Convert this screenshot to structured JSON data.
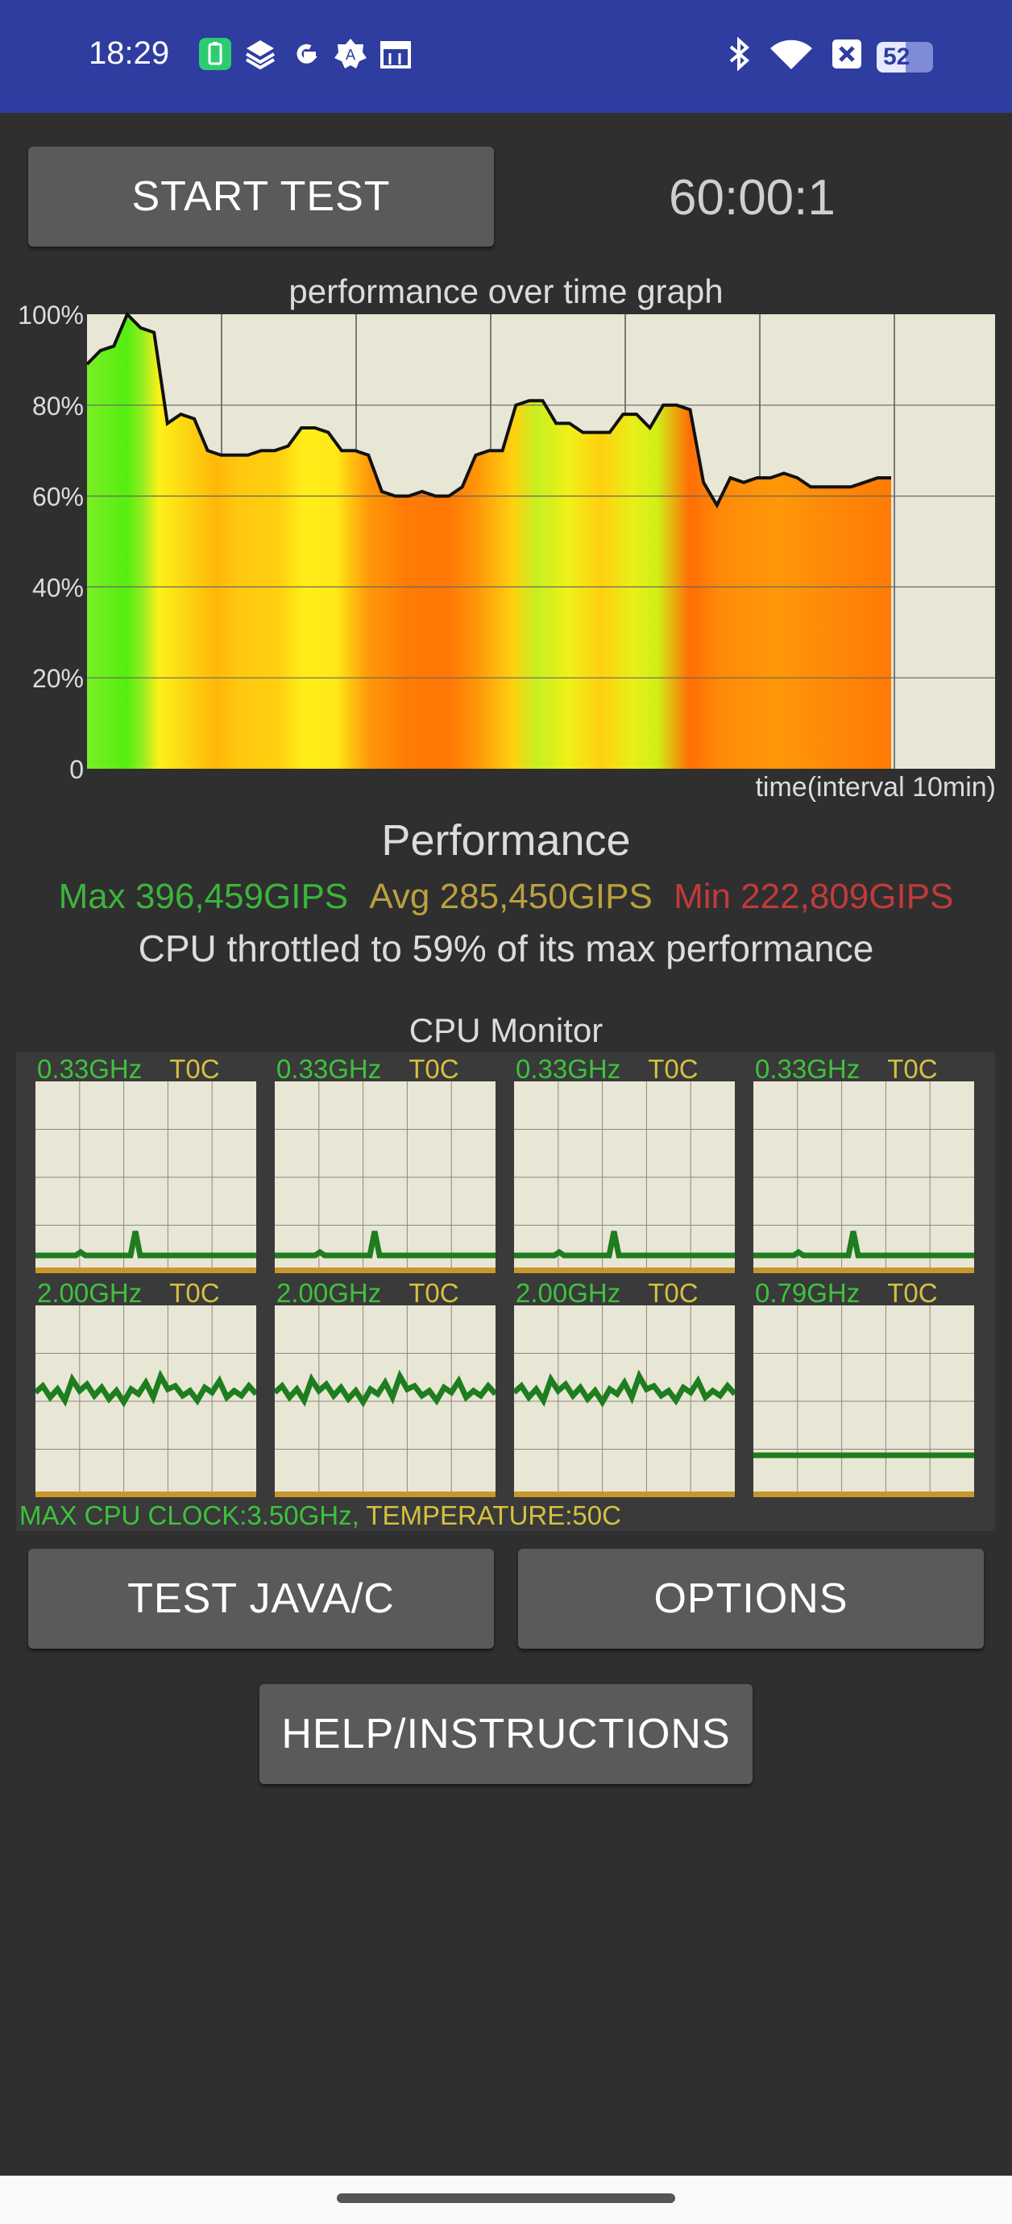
{
  "status_bar": {
    "time": "18:29",
    "battery_level": "52",
    "icons": [
      "battery-saver-icon",
      "layers-icon",
      "google-icon",
      "settings-badge-icon",
      "calendar-icon",
      "bluetooth-icon",
      "wifi-icon",
      "no-sim-icon",
      "battery-icon"
    ]
  },
  "controls": {
    "start_label": "START TEST",
    "timer": "60:00:1",
    "java_label": "TEST JAVA/C",
    "options_label": "OPTIONS",
    "help_label": "HELP/INSTRUCTIONS"
  },
  "graph": {
    "title": "performance over time graph",
    "x_label": "time(interval 10min)",
    "y_ticks": [
      "100%",
      "80%",
      "60%",
      "40%",
      "20%",
      "0"
    ]
  },
  "performance": {
    "title": "Performance",
    "max": "Max 396,459GIPS",
    "avg": "Avg 285,450GIPS",
    "min": "Min 222,809GIPS",
    "throttle": "CPU throttled to 59% of its max performance"
  },
  "cpu_monitor": {
    "title": "CPU Monitor",
    "cores": [
      {
        "freq": "0.33GHz",
        "temp": "T0C",
        "pattern": "flat-spike"
      },
      {
        "freq": "0.33GHz",
        "temp": "T0C",
        "pattern": "flat-spike"
      },
      {
        "freq": "0.33GHz",
        "temp": "T0C",
        "pattern": "flat-spike"
      },
      {
        "freq": "0.33GHz",
        "temp": "T0C",
        "pattern": "flat-spike"
      },
      {
        "freq": "2.00GHz",
        "temp": "T0C",
        "pattern": "noisy"
      },
      {
        "freq": "2.00GHz",
        "temp": "T0C",
        "pattern": "noisy"
      },
      {
        "freq": "2.00GHz",
        "temp": "T0C",
        "pattern": "noisy"
      },
      {
        "freq": "0.79GHz",
        "temp": "T0C",
        "pattern": "flat-mid"
      }
    ],
    "max_clock": "MAX CPU CLOCK:3.50GHz,",
    "temperature": "TEMPERATURE:50C"
  },
  "chart_data": {
    "type": "area",
    "title": "performance over time graph",
    "xlabel": "time(interval 10min)",
    "ylabel": "",
    "ylim": [
      0,
      100
    ],
    "xlim": [
      0,
      60
    ],
    "x": [
      0,
      1,
      2,
      3,
      4,
      5,
      6,
      7,
      8,
      9,
      10,
      11,
      12,
      13,
      14,
      15,
      16,
      17,
      18,
      19,
      20,
      21,
      22,
      23,
      24,
      25,
      26,
      27,
      28,
      29,
      30,
      31,
      32,
      33,
      34,
      35,
      36,
      37,
      38,
      39,
      40,
      41,
      42,
      43,
      44,
      45,
      46,
      47,
      48,
      49,
      50,
      51,
      52,
      53,
      54,
      55,
      56,
      57,
      58,
      59,
      60
    ],
    "values": [
      89,
      92,
      93,
      100,
      97,
      96,
      76,
      78,
      77,
      70,
      69,
      69,
      69,
      70,
      70,
      71,
      75,
      75,
      74,
      70,
      70,
      69,
      61,
      60,
      60,
      61,
      60,
      60,
      62,
      69,
      70,
      70,
      80,
      81,
      81,
      76,
      76,
      74,
      74,
      74,
      78,
      78,
      75,
      80,
      80,
      79,
      63,
      58,
      64,
      63,
      64,
      64,
      65,
      64,
      62,
      62,
      62,
      62,
      63,
      64,
      64
    ]
  }
}
